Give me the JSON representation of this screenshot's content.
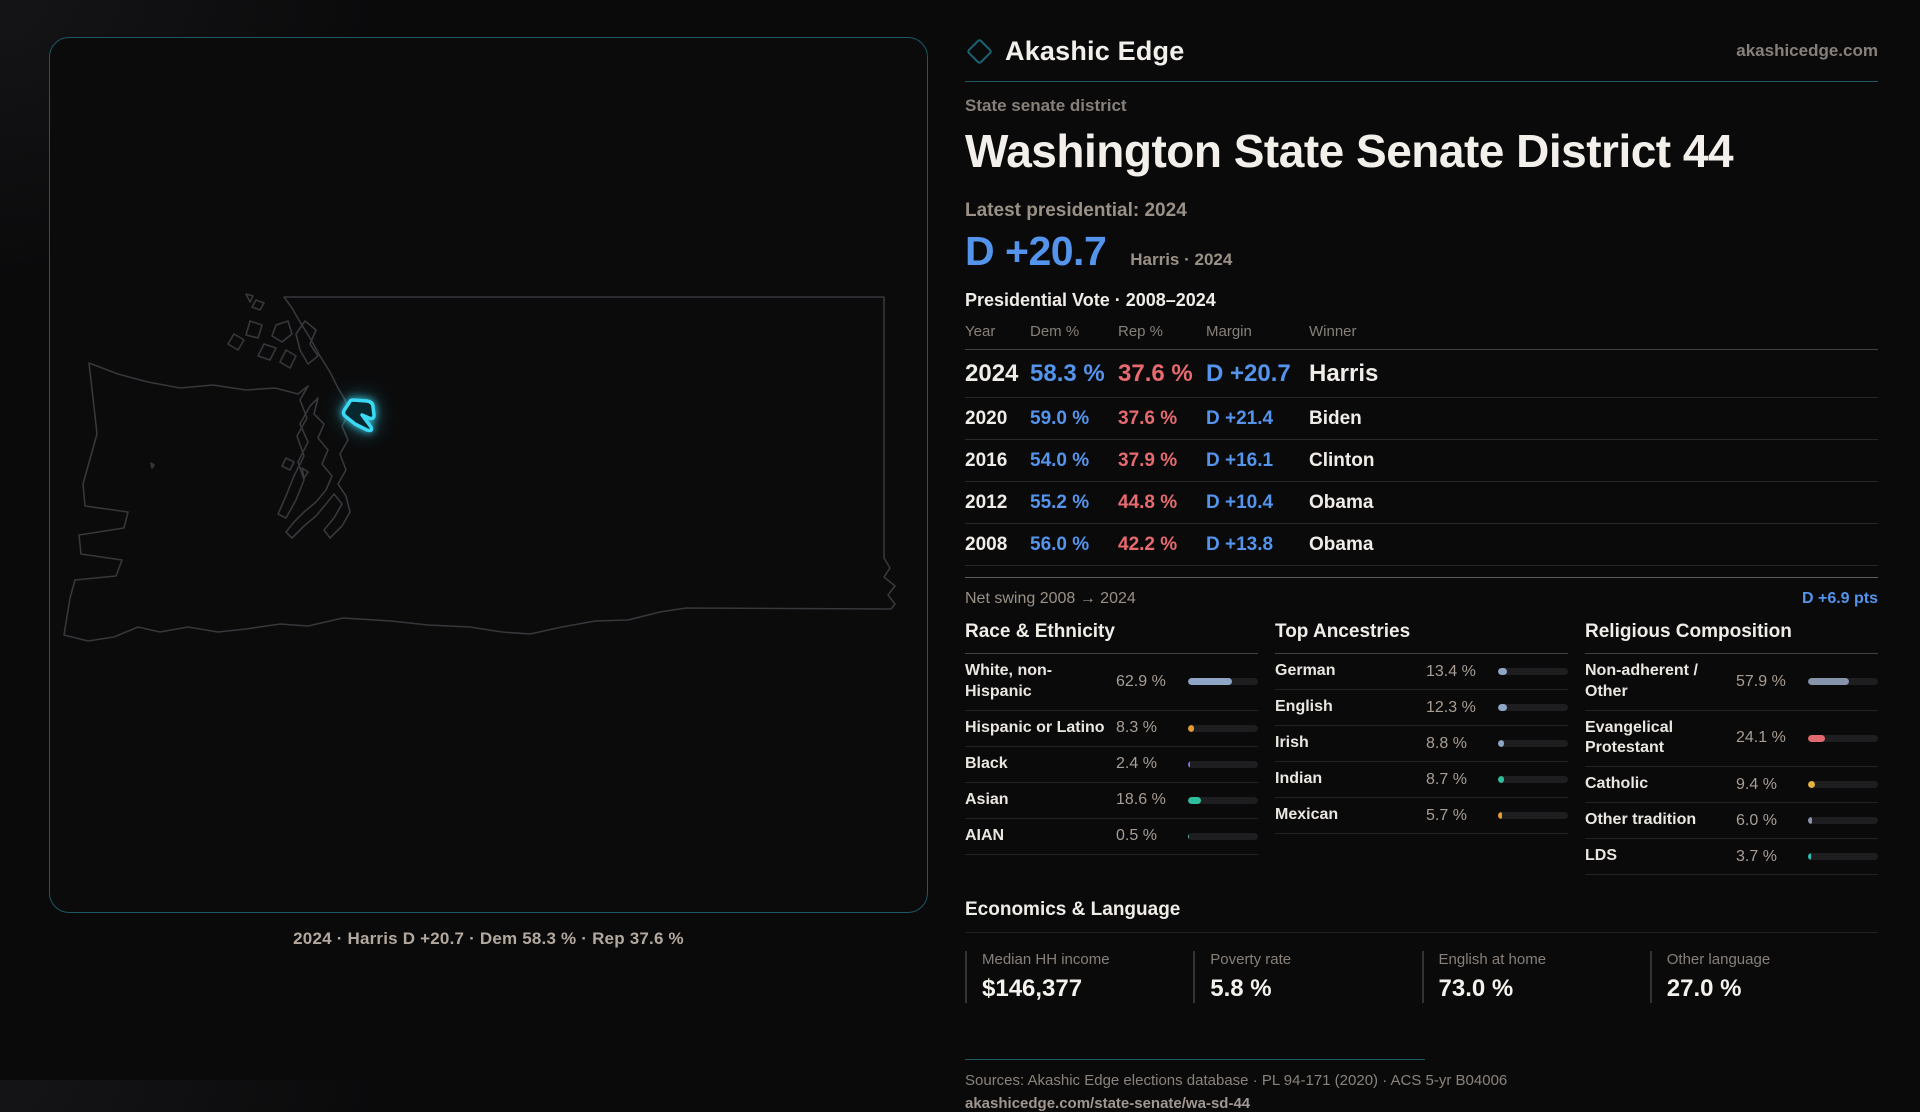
{
  "brand": {
    "name": "Akashic Edge",
    "domain": "akashicedge.com"
  },
  "page": {
    "kicker": "State senate district",
    "title": "Washington State Senate District 44"
  },
  "headline": {
    "label": "Latest presidential: 2024",
    "margin": "D +20.7",
    "sub": "Harris · 2024"
  },
  "table": {
    "title": "Presidential Vote · 2008–2024",
    "columns": [
      "Year",
      "Dem %",
      "Rep %",
      "Margin",
      "Winner"
    ],
    "rows": [
      {
        "year": "2024",
        "dem": "58.3 %",
        "rep": "37.6 %",
        "margin": "D +20.7",
        "winner": "Harris",
        "featured": true
      },
      {
        "year": "2020",
        "dem": "59.0 %",
        "rep": "37.6 %",
        "margin": "D +21.4",
        "winner": "Biden",
        "featured": false
      },
      {
        "year": "2016",
        "dem": "54.0 %",
        "rep": "37.9 %",
        "margin": "D +16.1",
        "winner": "Clinton",
        "featured": false
      },
      {
        "year": "2012",
        "dem": "55.2 %",
        "rep": "44.8 %",
        "margin": "D +10.4",
        "winner": "Obama",
        "featured": false
      },
      {
        "year": "2008",
        "dem": "56.0 %",
        "rep": "42.2 %",
        "margin": "D +13.8",
        "winner": "Obama",
        "featured": false
      }
    ]
  },
  "net_swing": {
    "label": "Net swing 2008 → 2024",
    "value": "D +6.9 pts"
  },
  "chart_data": [
    {
      "type": "bar",
      "title": "Race & Ethnicity",
      "categories": [
        "White, non-Hispanic",
        "Hispanic or Latino",
        "Black",
        "Asian",
        "AIAN"
      ],
      "values": [
        62.9,
        8.3,
        2.4,
        18.6,
        0.5
      ],
      "value_labels": [
        "62.9 %",
        "8.3 %",
        "2.4 %",
        "18.6 %",
        "0.5 %"
      ],
      "bar_colors": [
        "#8fa5c6",
        "#e39a36",
        "#8a6cd9",
        "#2ebf9e",
        "#6aa8a0"
      ],
      "xlim": [
        0,
        100
      ]
    },
    {
      "type": "bar",
      "title": "Top Ancestries",
      "categories": [
        "German",
        "English",
        "Irish",
        "Indian",
        "Mexican"
      ],
      "values": [
        13.4,
        12.3,
        8.8,
        8.7,
        5.7
      ],
      "value_labels": [
        "13.4 %",
        "12.3 %",
        "8.8 %",
        "8.7 %",
        "5.7 %"
      ],
      "bar_colors": [
        "#8fa5c6",
        "#8fa5c6",
        "#8fa5c6",
        "#2ebf9e",
        "#e39a36"
      ],
      "xlim": [
        0,
        100
      ]
    },
    {
      "type": "bar",
      "title": "Religious Composition",
      "categories": [
        "Non-adherent / Other",
        "Evangelical Protestant",
        "Catholic",
        "Other tradition",
        "LDS"
      ],
      "values": [
        57.9,
        24.1,
        9.4,
        6.0,
        3.7
      ],
      "value_labels": [
        "57.9 %",
        "24.1 %",
        "9.4 %",
        "6.0 %",
        "3.7 %"
      ],
      "bar_colors": [
        "#8593ab",
        "#e06a6e",
        "#e3b33c",
        "#8a93a8",
        "#2ebfb2"
      ],
      "xlim": [
        0,
        100
      ]
    }
  ],
  "economics": {
    "title": "Economics & Language",
    "stats": [
      {
        "label": "Median HH income",
        "value": "$146,377"
      },
      {
        "label": "Poverty rate",
        "value": "5.8 %"
      },
      {
        "label": "English at home",
        "value": "73.0 %"
      },
      {
        "label": "Other language",
        "value": "27.0 %"
      }
    ]
  },
  "footer": {
    "sources": "Sources: Akashic Edge elections database · PL 94-171 (2020) · ACS 5-yr B04006",
    "url": "akashicedge.com/state-senate/wa-sd-44"
  },
  "map": {
    "caption": "2024 · Harris D +20.7 · Dem 58.3 % · Rep 37.6 %"
  },
  "colors": {
    "dem_blue": "#5494ec",
    "rep_red": "#e76a6e",
    "accent_teal": "#1d5864",
    "district_cyan": "#3bd9f4",
    "background": "#0a0a0b",
    "muted_text": "#87807a"
  }
}
